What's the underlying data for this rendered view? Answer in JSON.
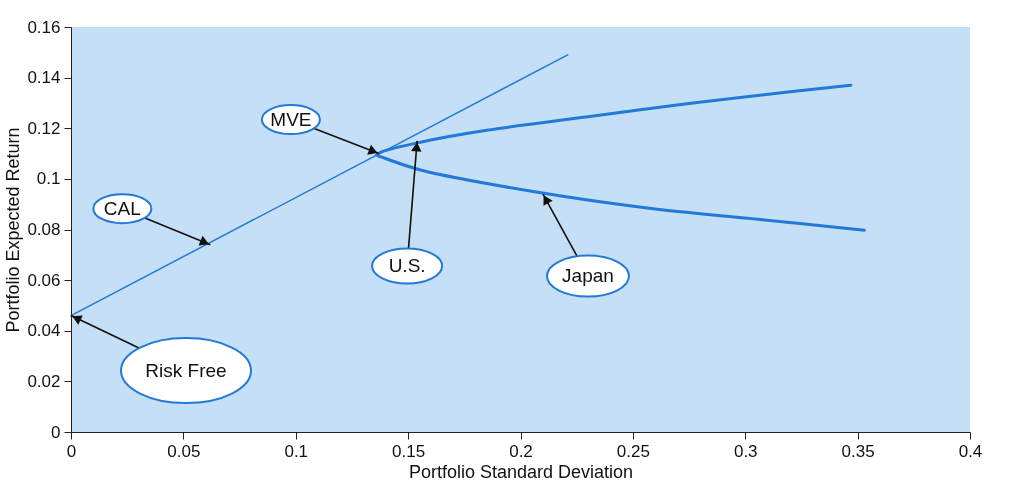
{
  "chart_data": {
    "type": "line",
    "xlabel": "Portfolio Standard Deviation",
    "ylabel": "Portfolio Expected Return",
    "xlim": [
      0,
      0.4
    ],
    "ylim": [
      0,
      0.16
    ],
    "xticks": [
      0,
      0.05,
      0.1,
      0.15,
      0.2,
      0.25,
      0.3,
      0.35,
      0.4
    ],
    "yticks": [
      0,
      0.02,
      0.04,
      0.06,
      0.08,
      0.1,
      0.12,
      0.14,
      0.16
    ],
    "series": [
      {
        "type": "line",
        "color": "#2279d8",
        "x": [
          0,
          0.221
        ],
        "values": [
          0.046,
          0.149
        ]
      },
      {
        "type": "line",
        "color": "#2279d8",
        "x": [
          0.347,
          0.319,
          0.274,
          0.23,
          0.185,
          0.156,
          0.138,
          0.136,
          0.138,
          0.156,
          0.207,
          0.259,
          0.304,
          0.353
        ],
        "values": [
          0.137,
          0.1343,
          0.1297,
          0.1245,
          0.1192,
          0.1146,
          0.1106,
          0.1094,
          0.1087,
          0.1034,
          0.0948,
          0.0882,
          0.0842,
          0.0797
        ]
      }
    ],
    "annotations": [
      {
        "text": "MVE",
        "x": 0.137,
        "y": 0.11
      },
      {
        "text": "CAL",
        "x": 0.062,
        "y": 0.074
      },
      {
        "text": "U.S.",
        "x": 0.154,
        "y": 0.115
      },
      {
        "text": "Japan",
        "x": 0.21,
        "y": 0.094
      },
      {
        "text": "Risk Free",
        "x": 0,
        "y": 0.046
      }
    ]
  }
}
